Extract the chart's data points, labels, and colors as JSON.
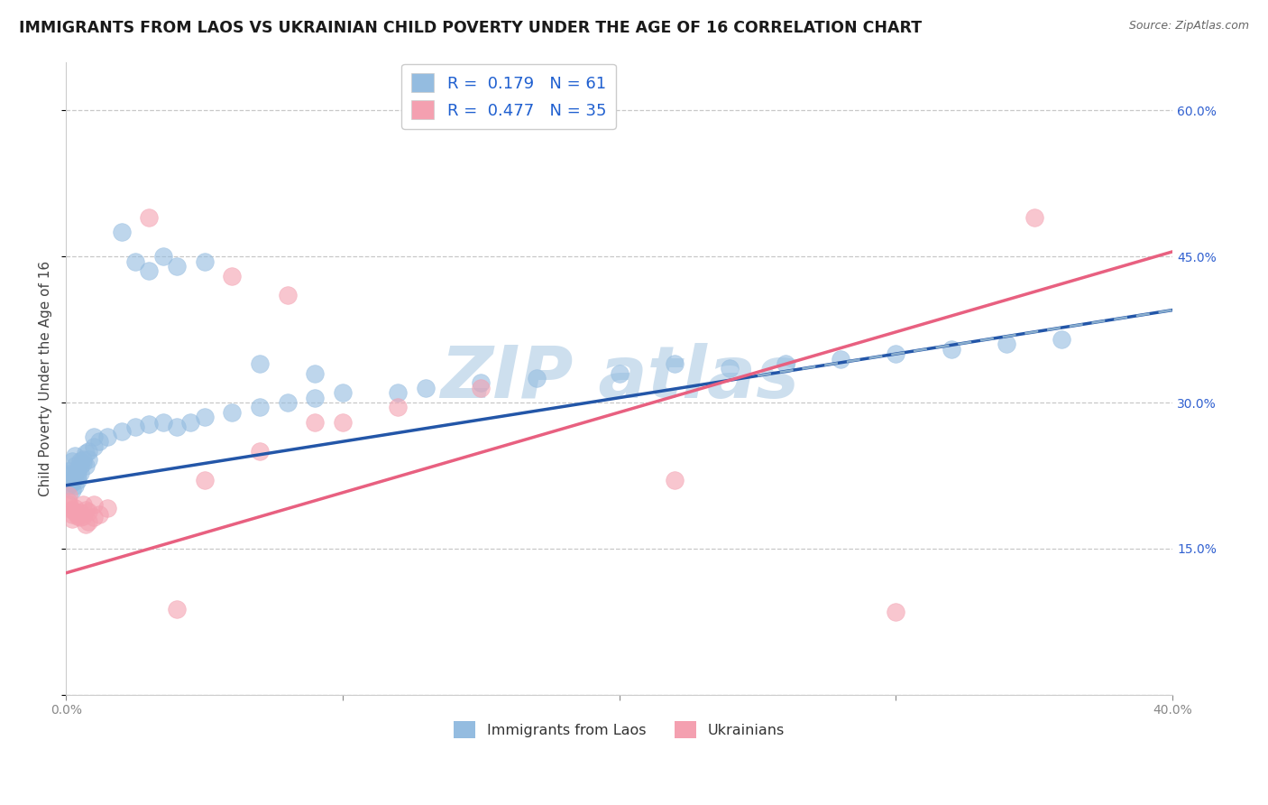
{
  "title": "IMMIGRANTS FROM LAOS VS UKRAINIAN CHILD POVERTY UNDER THE AGE OF 16 CORRELATION CHART",
  "source": "Source: ZipAtlas.com",
  "ylabel": "Child Poverty Under the Age of 16",
  "x_min": 0.0,
  "x_max": 0.4,
  "y_min": 0.0,
  "y_max": 0.65,
  "x_ticks": [
    0.0,
    0.1,
    0.2,
    0.3,
    0.4
  ],
  "x_tick_labels": [
    "0.0%",
    "",
    "",
    "",
    "40.0%"
  ],
  "y_ticks": [
    0.0,
    0.15,
    0.3,
    0.45,
    0.6
  ],
  "right_y_tick_labels": [
    "",
    "15.0%",
    "30.0%",
    "45.0%",
    "60.0%"
  ],
  "laos_color": "#94bce0",
  "ukr_color": "#f4a0b0",
  "laos_line_color": "#2356a8",
  "ukr_line_color": "#e86080",
  "watermark_color": "#c8dced",
  "background_color": "#ffffff",
  "grid_color": "#c8c8c8",
  "title_fontsize": 12.5,
  "axis_label_fontsize": 11,
  "tick_fontsize": 10,
  "right_y_tick_color": "#3060d0",
  "laos_points": [
    [
      0.001,
      0.225
    ],
    [
      0.001,
      0.22
    ],
    [
      0.001,
      0.23
    ],
    [
      0.001,
      0.215
    ],
    [
      0.002,
      0.228
    ],
    [
      0.002,
      0.218
    ],
    [
      0.002,
      0.24
    ],
    [
      0.002,
      0.21
    ],
    [
      0.003,
      0.235
    ],
    [
      0.003,
      0.222
    ],
    [
      0.003,
      0.245
    ],
    [
      0.003,
      0.215
    ],
    [
      0.004,
      0.23
    ],
    [
      0.004,
      0.22
    ],
    [
      0.004,
      0.225
    ],
    [
      0.005,
      0.235
    ],
    [
      0.005,
      0.24
    ],
    [
      0.005,
      0.228
    ],
    [
      0.006,
      0.242
    ],
    [
      0.006,
      0.238
    ],
    [
      0.007,
      0.248
    ],
    [
      0.007,
      0.235
    ],
    [
      0.008,
      0.25
    ],
    [
      0.008,
      0.242
    ],
    [
      0.01,
      0.255
    ],
    [
      0.01,
      0.265
    ],
    [
      0.012,
      0.26
    ],
    [
      0.015,
      0.265
    ],
    [
      0.02,
      0.27
    ],
    [
      0.025,
      0.275
    ],
    [
      0.03,
      0.278
    ],
    [
      0.035,
      0.28
    ],
    [
      0.04,
      0.275
    ],
    [
      0.045,
      0.28
    ],
    [
      0.05,
      0.285
    ],
    [
      0.06,
      0.29
    ],
    [
      0.07,
      0.295
    ],
    [
      0.08,
      0.3
    ],
    [
      0.09,
      0.305
    ],
    [
      0.1,
      0.31
    ],
    [
      0.02,
      0.475
    ],
    [
      0.025,
      0.445
    ],
    [
      0.03,
      0.435
    ],
    [
      0.035,
      0.45
    ],
    [
      0.04,
      0.44
    ],
    [
      0.05,
      0.445
    ],
    [
      0.12,
      0.31
    ],
    [
      0.13,
      0.315
    ],
    [
      0.15,
      0.32
    ],
    [
      0.17,
      0.325
    ],
    [
      0.2,
      0.33
    ],
    [
      0.22,
      0.34
    ],
    [
      0.24,
      0.335
    ],
    [
      0.26,
      0.34
    ],
    [
      0.28,
      0.345
    ],
    [
      0.3,
      0.35
    ],
    [
      0.32,
      0.355
    ],
    [
      0.34,
      0.36
    ],
    [
      0.36,
      0.365
    ],
    [
      0.07,
      0.34
    ],
    [
      0.09,
      0.33
    ]
  ],
  "ukr_points": [
    [
      0.001,
      0.205
    ],
    [
      0.001,
      0.198
    ],
    [
      0.001,
      0.195
    ],
    [
      0.002,
      0.19
    ],
    [
      0.002,
      0.185
    ],
    [
      0.002,
      0.18
    ],
    [
      0.003,
      0.192
    ],
    [
      0.003,
      0.188
    ],
    [
      0.004,
      0.185
    ],
    [
      0.004,
      0.183
    ],
    [
      0.005,
      0.187
    ],
    [
      0.005,
      0.182
    ],
    [
      0.006,
      0.183
    ],
    [
      0.006,
      0.195
    ],
    [
      0.007,
      0.175
    ],
    [
      0.007,
      0.19
    ],
    [
      0.008,
      0.188
    ],
    [
      0.008,
      0.178
    ],
    [
      0.01,
      0.195
    ],
    [
      0.01,
      0.182
    ],
    [
      0.012,
      0.185
    ],
    [
      0.015,
      0.192
    ],
    [
      0.05,
      0.22
    ],
    [
      0.07,
      0.25
    ],
    [
      0.09,
      0.28
    ],
    [
      0.1,
      0.28
    ],
    [
      0.12,
      0.295
    ],
    [
      0.15,
      0.315
    ],
    [
      0.03,
      0.49
    ],
    [
      0.06,
      0.43
    ],
    [
      0.08,
      0.41
    ],
    [
      0.22,
      0.22
    ],
    [
      0.35,
      0.49
    ],
    [
      0.3,
      0.085
    ],
    [
      0.04,
      0.088
    ]
  ]
}
